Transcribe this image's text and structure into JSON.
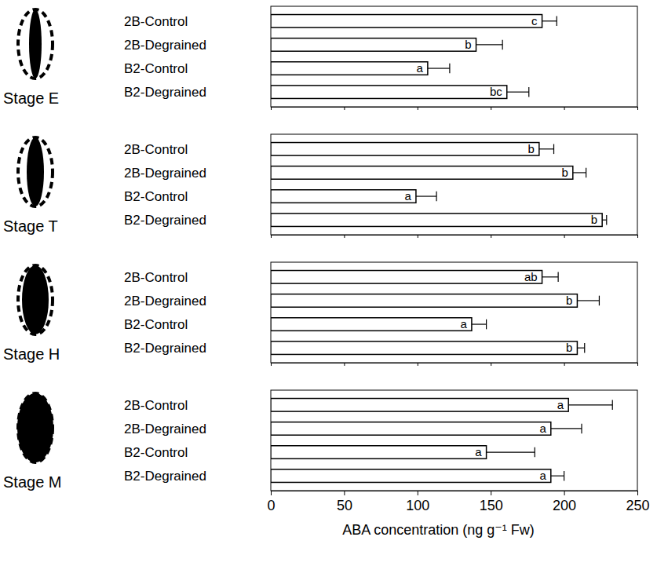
{
  "chart_data": [
    {
      "type": "bar",
      "orientation": "horizontal",
      "title": "Stage E",
      "categories": [
        "2B-Control",
        "2B-Degrained",
        "B2-Control",
        "B2-Degrained"
      ],
      "values": [
        185,
        140,
        107,
        161
      ],
      "errors": [
        10,
        18,
        15,
        15
      ],
      "letters": [
        "c",
        "b",
        "a",
        "bc"
      ],
      "color": "#ffffff",
      "xlim": [
        0,
        250
      ],
      "xticks": [
        0,
        50,
        100,
        150,
        200,
        250
      ],
      "tick_labels": "y"
    },
    {
      "type": "bar",
      "orientation": "horizontal",
      "title": "Stage T",
      "categories": [
        "2B-Control",
        "2B-Degrained",
        "B2-Control",
        "B2-Degrained"
      ],
      "values": [
        183,
        206,
        99,
        226
      ],
      "errors": [
        10,
        9,
        14,
        3
      ],
      "letters": [
        "b",
        "b",
        "a",
        "b"
      ],
      "color": "#ffffff",
      "xlim": [
        0,
        250
      ],
      "xticks": [
        0,
        50,
        100,
        150,
        200,
        250
      ],
      "tick_labels": "y"
    },
    {
      "type": "bar",
      "orientation": "horizontal",
      "title": "Stage H",
      "categories": [
        "2B-Control",
        "2B-Degrained",
        "B2-Control",
        "B2-Degrained"
      ],
      "values": [
        185,
        209,
        137,
        209
      ],
      "errors": [
        11,
        15,
        10,
        5
      ],
      "letters": [
        "ab",
        "b",
        "a",
        "b"
      ],
      "color": "#ffffff",
      "xlim": [
        0,
        250
      ],
      "xticks": [
        0,
        50,
        100,
        150,
        200,
        250
      ],
      "tick_labels": "y"
    },
    {
      "type": "bar",
      "orientation": "horizontal",
      "title": "Stage M",
      "categories": [
        "2B-Control",
        "2B-Degrained",
        "B2-Control",
        "B2-Degrained"
      ],
      "values": [
        203,
        191,
        147,
        191
      ],
      "errors": [
        30,
        21,
        33,
        9
      ],
      "letters": [
        "a",
        "a",
        "a",
        "a"
      ],
      "color": "#ffffff",
      "x_label": "ABA concentration (ng g⁻¹ Fw)",
      "xlim": [
        0,
        250
      ],
      "xticks": [
        0,
        50,
        100,
        150,
        200,
        250
      ],
      "tick_labels": true
    }
  ]
}
